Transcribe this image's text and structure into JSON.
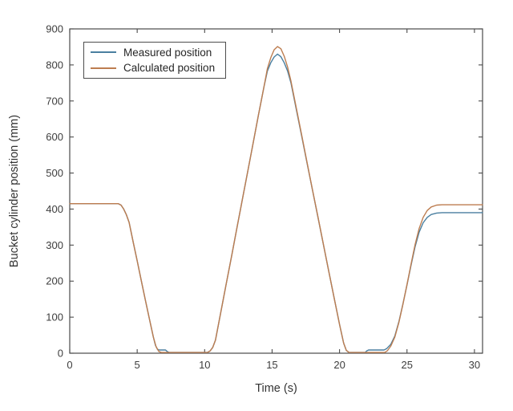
{
  "figure": {
    "background": "#ffffff",
    "axis_color": "#4a4a4a",
    "text_color": "#3d3d3d"
  },
  "chart_data": {
    "type": "line",
    "title": "",
    "xlabel": "Time (s)",
    "ylabel": "Bucket cylinder position (mm)",
    "xlim": [
      0,
      30.6
    ],
    "ylim": [
      0,
      900
    ],
    "xticks": [
      0,
      5,
      10,
      15,
      20,
      25,
      30
    ],
    "yticks": [
      0,
      100,
      200,
      300,
      400,
      500,
      600,
      700,
      800,
      900
    ],
    "grid": false,
    "box": true,
    "legend_position": "upper-left",
    "series": [
      {
        "name": "Measured position",
        "color": "#4a7fa0",
        "points": [
          [
            0,
            415
          ],
          [
            3.6,
            415
          ],
          [
            3.8,
            411
          ],
          [
            4.0,
            400
          ],
          [
            4.2,
            384
          ],
          [
            4.4,
            363
          ],
          [
            4.7,
            309
          ],
          [
            5.0,
            256
          ],
          [
            5.3,
            202
          ],
          [
            5.6,
            149
          ],
          [
            5.9,
            96
          ],
          [
            6.2,
            45
          ],
          [
            6.35,
            22
          ],
          [
            6.5,
            11
          ],
          [
            6.65,
            9
          ],
          [
            7.1,
            9
          ],
          [
            7.25,
            4
          ],
          [
            7.4,
            2
          ],
          [
            8.5,
            2
          ],
          [
            10.2,
            2
          ],
          [
            10.4,
            6
          ],
          [
            10.6,
            16
          ],
          [
            10.8,
            36
          ],
          [
            11.2,
            114
          ],
          [
            11.6,
            192
          ],
          [
            12.0,
            270
          ],
          [
            12.4,
            349
          ],
          [
            12.8,
            427
          ],
          [
            13.2,
            506
          ],
          [
            13.6,
            584
          ],
          [
            14.0,
            663
          ],
          [
            14.4,
            740
          ],
          [
            14.65,
            783
          ],
          [
            14.9,
            806
          ],
          [
            15.15,
            822
          ],
          [
            15.4,
            830
          ],
          [
            15.65,
            823
          ],
          [
            15.9,
            806
          ],
          [
            16.15,
            783
          ],
          [
            16.4,
            750
          ],
          [
            16.8,
            676
          ],
          [
            17.2,
            601
          ],
          [
            17.6,
            526
          ],
          [
            18.0,
            452
          ],
          [
            18.4,
            377
          ],
          [
            18.8,
            302
          ],
          [
            19.2,
            228
          ],
          [
            19.6,
            153
          ],
          [
            20.0,
            80
          ],
          [
            20.3,
            28
          ],
          [
            20.5,
            8
          ],
          [
            20.7,
            2
          ],
          [
            21.9,
            2
          ],
          [
            22.0,
            6
          ],
          [
            22.15,
            9
          ],
          [
            23.3,
            9
          ],
          [
            23.5,
            13
          ],
          [
            23.8,
            25
          ],
          [
            24.1,
            48
          ],
          [
            24.4,
            88
          ],
          [
            24.7,
            137
          ],
          [
            25.0,
            190
          ],
          [
            25.3,
            244
          ],
          [
            25.6,
            295
          ],
          [
            25.9,
            336
          ],
          [
            26.2,
            362
          ],
          [
            26.5,
            377
          ],
          [
            26.8,
            385
          ],
          [
            27.2,
            389
          ],
          [
            27.6,
            390
          ],
          [
            30.6,
            390
          ]
        ]
      },
      {
        "name": "Calculated position",
        "color": "#bd7d50",
        "points": [
          [
            0,
            415
          ],
          [
            3.6,
            415
          ],
          [
            3.8,
            411
          ],
          [
            4.0,
            400
          ],
          [
            4.2,
            384
          ],
          [
            4.4,
            363
          ],
          [
            4.7,
            309
          ],
          [
            5.0,
            256
          ],
          [
            5.3,
            202
          ],
          [
            5.6,
            149
          ],
          [
            5.9,
            96
          ],
          [
            6.2,
            45
          ],
          [
            6.4,
            18
          ],
          [
            6.6,
            5
          ],
          [
            6.8,
            2
          ],
          [
            8.5,
            2
          ],
          [
            10.2,
            2
          ],
          [
            10.4,
            6
          ],
          [
            10.6,
            16
          ],
          [
            10.8,
            36
          ],
          [
            11.2,
            114
          ],
          [
            11.6,
            192
          ],
          [
            12.0,
            270
          ],
          [
            12.4,
            349
          ],
          [
            12.8,
            427
          ],
          [
            13.2,
            506
          ],
          [
            13.6,
            584
          ],
          [
            14.0,
            663
          ],
          [
            14.4,
            740
          ],
          [
            14.65,
            790
          ],
          [
            14.9,
            820
          ],
          [
            15.15,
            842
          ],
          [
            15.4,
            851
          ],
          [
            15.65,
            845
          ],
          [
            15.9,
            824
          ],
          [
            16.15,
            794
          ],
          [
            16.4,
            755
          ],
          [
            16.8,
            680
          ],
          [
            17.2,
            604
          ],
          [
            17.6,
            528
          ],
          [
            18.0,
            453
          ],
          [
            18.4,
            378
          ],
          [
            18.8,
            303
          ],
          [
            19.2,
            228
          ],
          [
            19.6,
            153
          ],
          [
            20.0,
            80
          ],
          [
            20.3,
            28
          ],
          [
            20.5,
            8
          ],
          [
            20.7,
            2
          ],
          [
            21.5,
            2
          ],
          [
            23.35,
            2
          ],
          [
            23.55,
            7
          ],
          [
            23.8,
            20
          ],
          [
            24.1,
            45
          ],
          [
            24.4,
            86
          ],
          [
            24.7,
            136
          ],
          [
            25.0,
            191
          ],
          [
            25.3,
            247
          ],
          [
            25.6,
            301
          ],
          [
            25.9,
            346
          ],
          [
            26.2,
            377
          ],
          [
            26.5,
            396
          ],
          [
            26.8,
            406
          ],
          [
            27.2,
            411
          ],
          [
            27.6,
            412
          ],
          [
            30.6,
            412
          ]
        ]
      }
    ]
  }
}
